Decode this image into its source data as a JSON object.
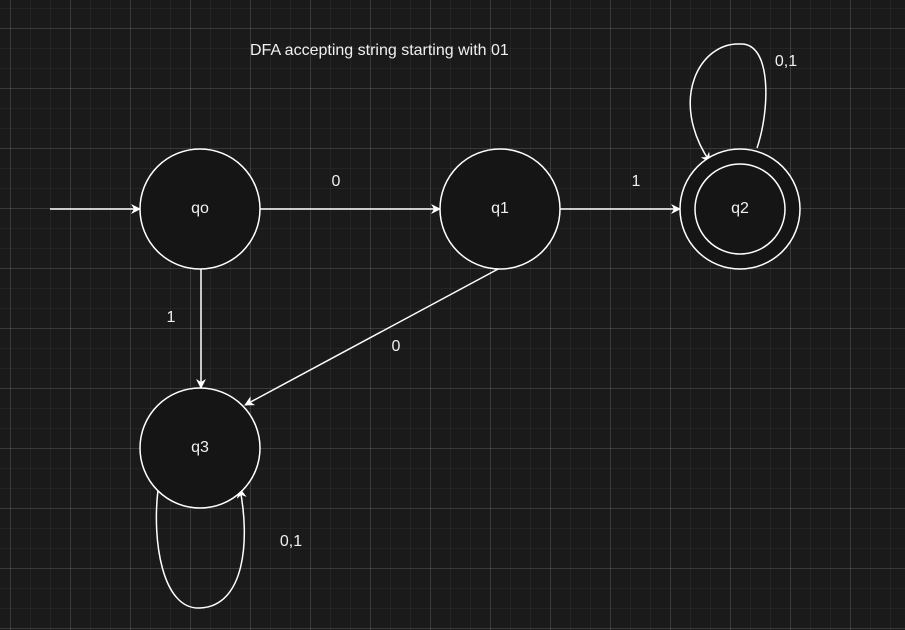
{
  "diagram": {
    "title": "DFA accepting string starting with 01",
    "states": [
      {
        "id": "q0",
        "label": "qo",
        "start": true,
        "accepting": false
      },
      {
        "id": "q1",
        "label": "q1",
        "start": false,
        "accepting": false
      },
      {
        "id": "q2",
        "label": "q2",
        "start": false,
        "accepting": true
      },
      {
        "id": "q3",
        "label": "q3",
        "start": false,
        "accepting": false
      }
    ],
    "transitions": [
      {
        "from": "q0",
        "to": "q1",
        "label": "0"
      },
      {
        "from": "q1",
        "to": "q2",
        "label": "1"
      },
      {
        "from": "q0",
        "to": "q3",
        "label": "1"
      },
      {
        "from": "q1",
        "to": "q3",
        "label": "0"
      },
      {
        "from": "q2",
        "to": "q2",
        "label": "0,1"
      },
      {
        "from": "q3",
        "to": "q3",
        "label": "0,1"
      }
    ],
    "colors": {
      "background": "#1a1a1a",
      "stroke": "#ffffff",
      "fill": "#1a1a1a",
      "text": "#f0f0f0"
    }
  }
}
